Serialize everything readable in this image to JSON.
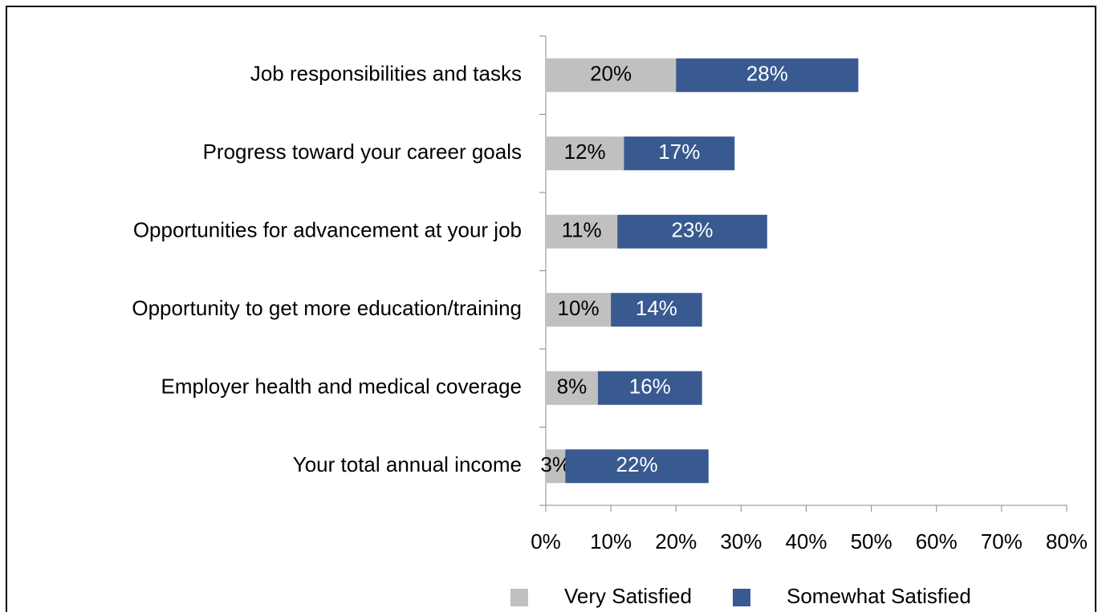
{
  "chart_data": {
    "type": "stacked_barh",
    "categories": [
      "Job responsibilities and tasks",
      "Progress toward your career goals",
      "Opportunities for advancement at your job",
      "Opportunity to get more education/training",
      "Employer health and medical coverage",
      "Your total annual income"
    ],
    "series": [
      {
        "name": "Very Satisfied",
        "color": "#c0c0c0",
        "values": [
          20,
          12,
          11,
          10,
          8,
          3
        ],
        "value_labels": [
          "20%",
          "12%",
          "11%",
          "10%",
          "8%",
          "3%"
        ]
      },
      {
        "name": "Somewhat Satisfied",
        "color": "#385a90",
        "values": [
          28,
          17,
          23,
          14,
          16,
          22
        ],
        "value_labels": [
          "28%",
          "17%",
          "23%",
          "14%",
          "16%",
          "22%"
        ]
      }
    ],
    "xlim": [
      0,
      80
    ],
    "xticks": [
      {
        "value": 0,
        "label": "0%"
      },
      {
        "value": 10,
        "label": "10%"
      },
      {
        "value": 20,
        "label": "20%"
      },
      {
        "value": 30,
        "label": "30%"
      },
      {
        "value": 40,
        "label": "40%"
      },
      {
        "value": 50,
        "label": "50%"
      },
      {
        "value": 60,
        "label": "60%"
      },
      {
        "value": 70,
        "label": "70%"
      },
      {
        "value": 80,
        "label": "80%"
      }
    ],
    "legend": "bottom"
  }
}
